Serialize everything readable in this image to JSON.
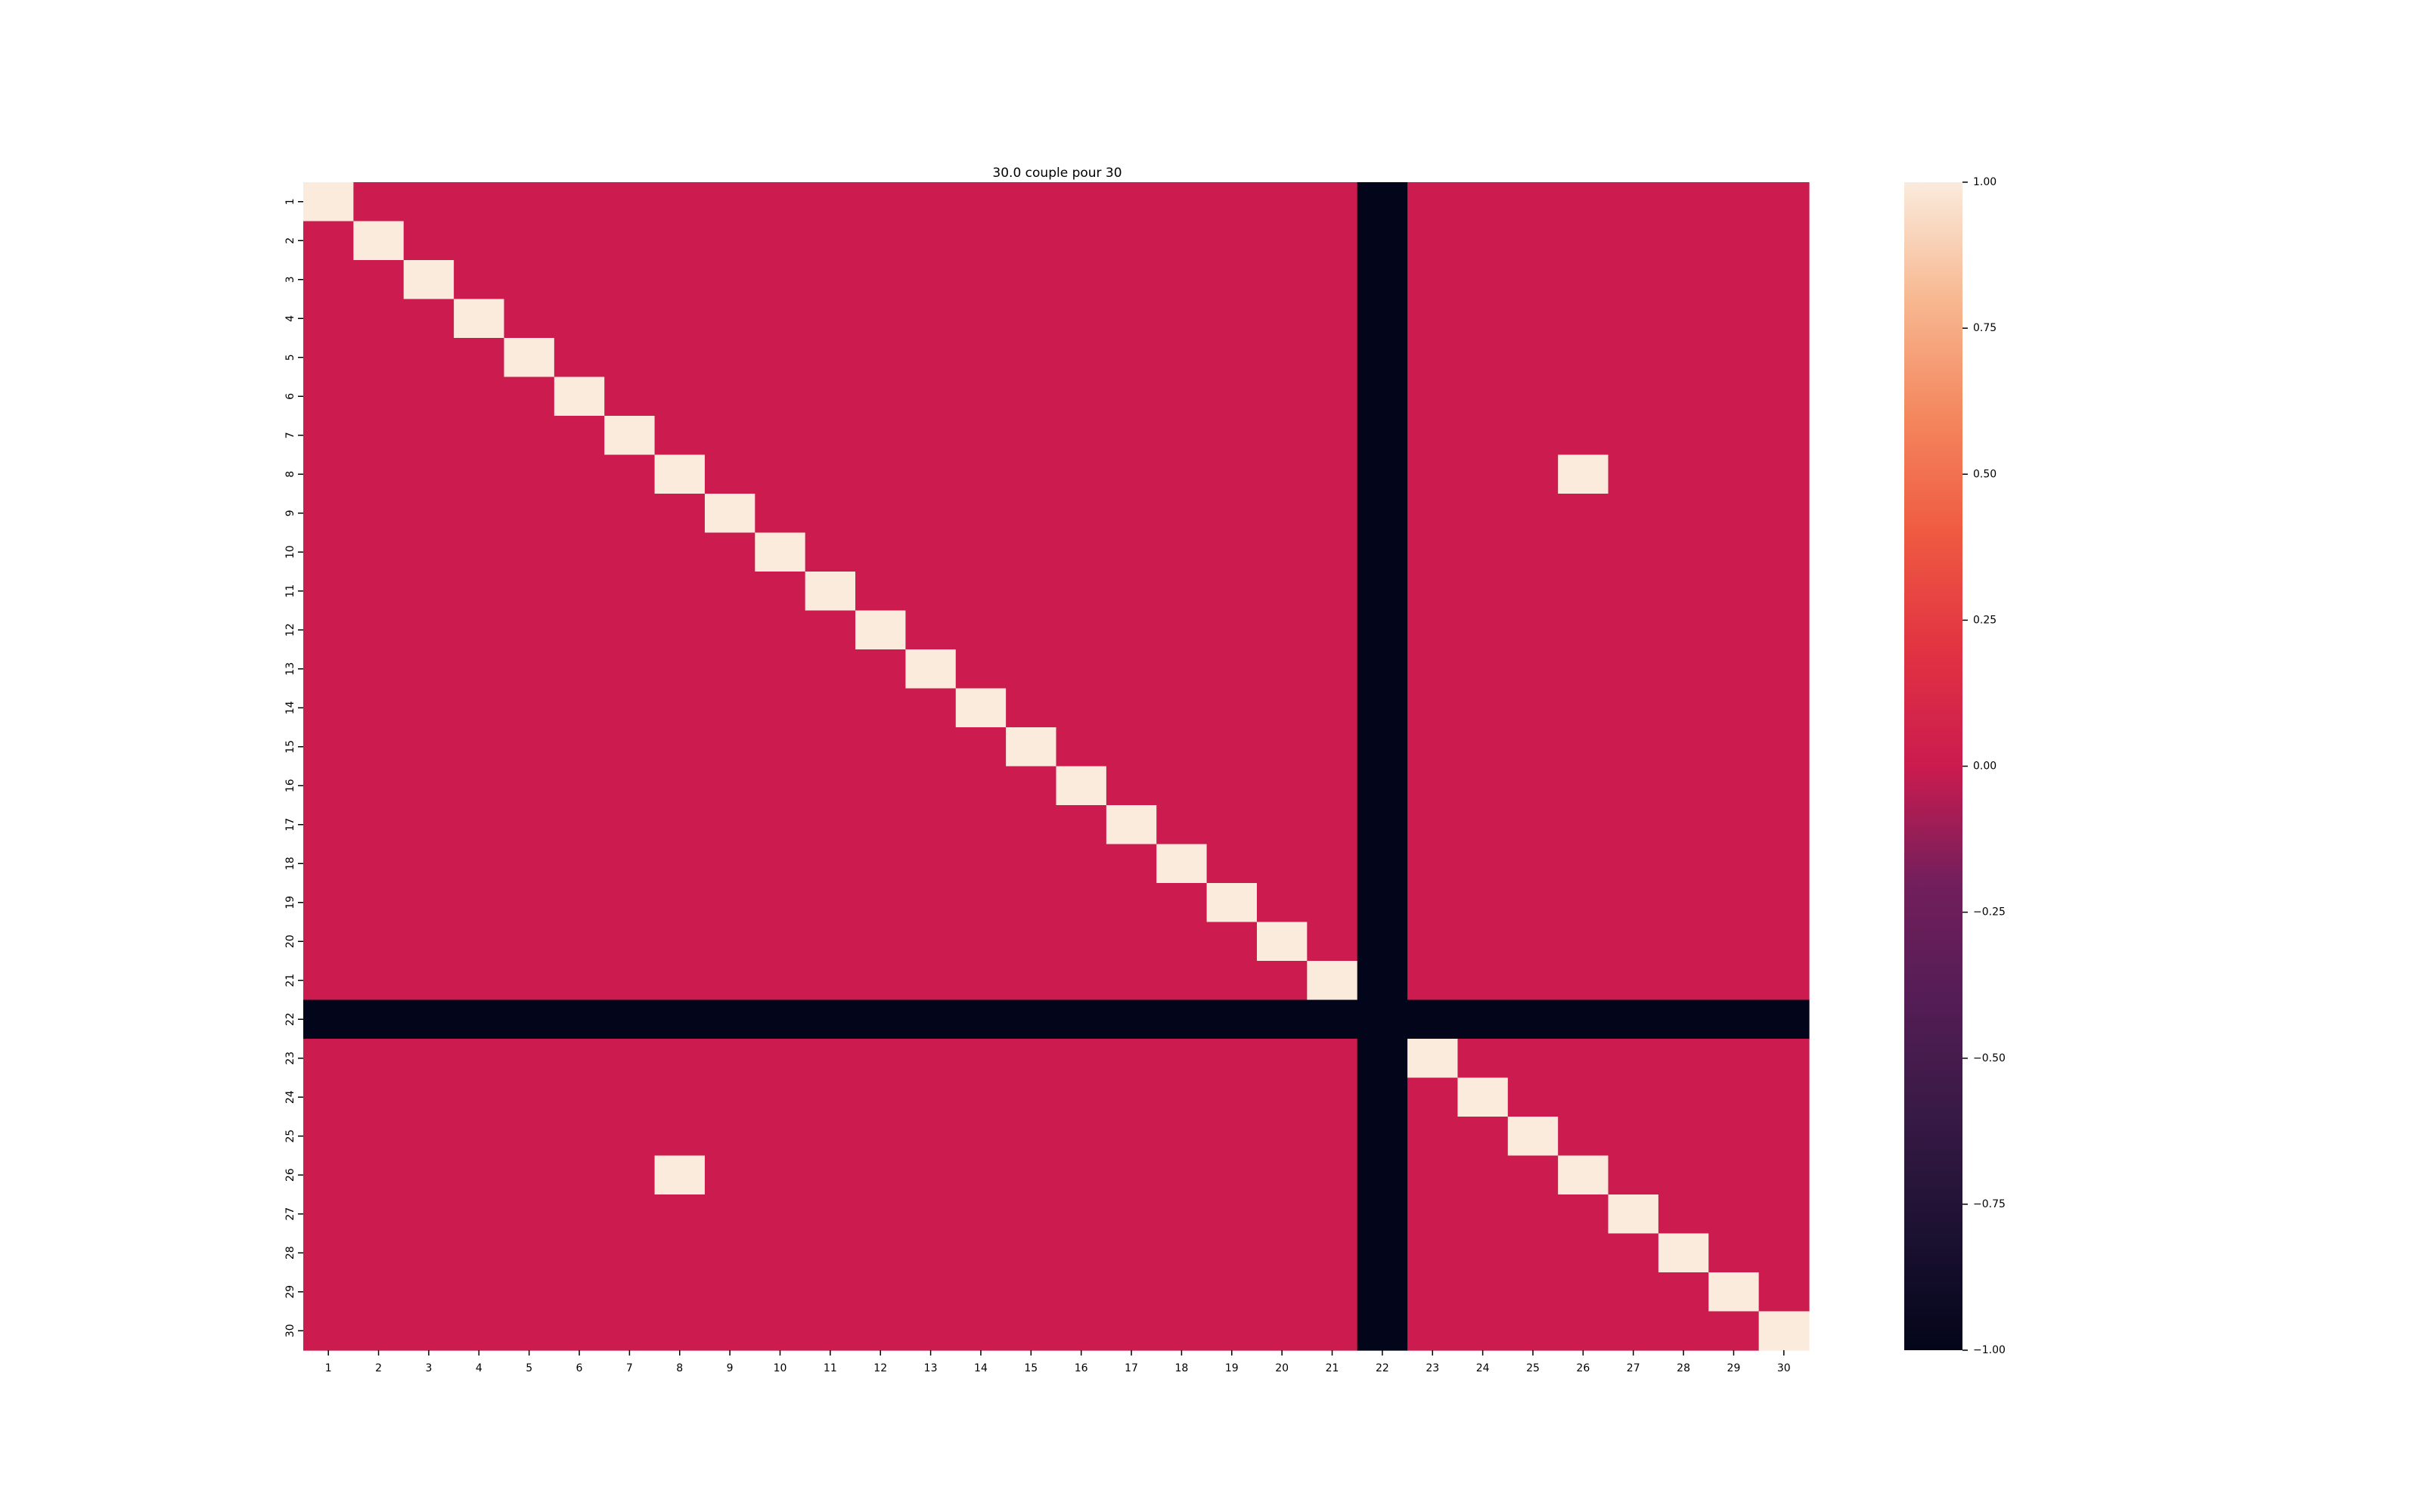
{
  "chart_data": {
    "type": "heatmap",
    "title": "30.0 couple pour 30",
    "xlabel": "",
    "ylabel": "",
    "x_labels": [
      "1",
      "2",
      "3",
      "4",
      "5",
      "6",
      "7",
      "8",
      "9",
      "10",
      "11",
      "12",
      "13",
      "14",
      "15",
      "16",
      "17",
      "18",
      "19",
      "20",
      "21",
      "22",
      "23",
      "24",
      "25",
      "26",
      "27",
      "28",
      "29",
      "30"
    ],
    "y_labels": [
      "1",
      "2",
      "3",
      "4",
      "5",
      "6",
      "7",
      "8",
      "9",
      "10",
      "11",
      "12",
      "13",
      "14",
      "15",
      "16",
      "17",
      "18",
      "19",
      "20",
      "21",
      "22",
      "23",
      "24",
      "25",
      "26",
      "27",
      "28",
      "29",
      "30"
    ],
    "matrix": [
      [
        1,
        0,
        0,
        0,
        0,
        0,
        0,
        0,
        0,
        0,
        0,
        0,
        0,
        0,
        0,
        0,
        0,
        0,
        0,
        0,
        0,
        -1,
        0,
        0,
        0,
        0,
        0,
        0,
        0,
        0
      ],
      [
        0,
        1,
        0,
        0,
        0,
        0,
        0,
        0,
        0,
        0,
        0,
        0,
        0,
        0,
        0,
        0,
        0,
        0,
        0,
        0,
        0,
        -1,
        0,
        0,
        0,
        0,
        0,
        0,
        0,
        0
      ],
      [
        0,
        0,
        1,
        0,
        0,
        0,
        0,
        0,
        0,
        0,
        0,
        0,
        0,
        0,
        0,
        0,
        0,
        0,
        0,
        0,
        0,
        -1,
        0,
        0,
        0,
        0,
        0,
        0,
        0,
        0
      ],
      [
        0,
        0,
        0,
        1,
        0,
        0,
        0,
        0,
        0,
        0,
        0,
        0,
        0,
        0,
        0,
        0,
        0,
        0,
        0,
        0,
        0,
        -1,
        0,
        0,
        0,
        0,
        0,
        0,
        0,
        0
      ],
      [
        0,
        0,
        0,
        0,
        1,
        0,
        0,
        0,
        0,
        0,
        0,
        0,
        0,
        0,
        0,
        0,
        0,
        0,
        0,
        0,
        0,
        -1,
        0,
        0,
        0,
        0,
        0,
        0,
        0,
        0
      ],
      [
        0,
        0,
        0,
        0,
        0,
        1,
        0,
        0,
        0,
        0,
        0,
        0,
        0,
        0,
        0,
        0,
        0,
        0,
        0,
        0,
        0,
        -1,
        0,
        0,
        0,
        0,
        0,
        0,
        0,
        0
      ],
      [
        0,
        0,
        0,
        0,
        0,
        0,
        1,
        0,
        0,
        0,
        0,
        0,
        0,
        0,
        0,
        0,
        0,
        0,
        0,
        0,
        0,
        -1,
        0,
        0,
        0,
        0,
        0,
        0,
        0,
        0
      ],
      [
        0,
        0,
        0,
        0,
        0,
        0,
        0,
        1,
        0,
        0,
        0,
        0,
        0,
        0,
        0,
        0,
        0,
        0,
        0,
        0,
        0,
        -1,
        0,
        0,
        0,
        1,
        0,
        0,
        0,
        0
      ],
      [
        0,
        0,
        0,
        0,
        0,
        0,
        0,
        0,
        1,
        0,
        0,
        0,
        0,
        0,
        0,
        0,
        0,
        0,
        0,
        0,
        0,
        -1,
        0,
        0,
        0,
        0,
        0,
        0,
        0,
        0
      ],
      [
        0,
        0,
        0,
        0,
        0,
        0,
        0,
        0,
        0,
        1,
        0,
        0,
        0,
        0,
        0,
        0,
        0,
        0,
        0,
        0,
        0,
        -1,
        0,
        0,
        0,
        0,
        0,
        0,
        0,
        0
      ],
      [
        0,
        0,
        0,
        0,
        0,
        0,
        0,
        0,
        0,
        0,
        1,
        0,
        0,
        0,
        0,
        0,
        0,
        0,
        0,
        0,
        0,
        -1,
        0,
        0,
        0,
        0,
        0,
        0,
        0,
        0
      ],
      [
        0,
        0,
        0,
        0,
        0,
        0,
        0,
        0,
        0,
        0,
        0,
        1,
        0,
        0,
        0,
        0,
        0,
        0,
        0,
        0,
        0,
        -1,
        0,
        0,
        0,
        0,
        0,
        0,
        0,
        0
      ],
      [
        0,
        0,
        0,
        0,
        0,
        0,
        0,
        0,
        0,
        0,
        0,
        0,
        1,
        0,
        0,
        0,
        0,
        0,
        0,
        0,
        0,
        -1,
        0,
        0,
        0,
        0,
        0,
        0,
        0,
        0
      ],
      [
        0,
        0,
        0,
        0,
        0,
        0,
        0,
        0,
        0,
        0,
        0,
        0,
        0,
        1,
        0,
        0,
        0,
        0,
        0,
        0,
        0,
        -1,
        0,
        0,
        0,
        0,
        0,
        0,
        0,
        0
      ],
      [
        0,
        0,
        0,
        0,
        0,
        0,
        0,
        0,
        0,
        0,
        0,
        0,
        0,
        0,
        1,
        0,
        0,
        0,
        0,
        0,
        0,
        -1,
        0,
        0,
        0,
        0,
        0,
        0,
        0,
        0
      ],
      [
        0,
        0,
        0,
        0,
        0,
        0,
        0,
        0,
        0,
        0,
        0,
        0,
        0,
        0,
        0,
        1,
        0,
        0,
        0,
        0,
        0,
        -1,
        0,
        0,
        0,
        0,
        0,
        0,
        0,
        0
      ],
      [
        0,
        0,
        0,
        0,
        0,
        0,
        0,
        0,
        0,
        0,
        0,
        0,
        0,
        0,
        0,
        0,
        1,
        0,
        0,
        0,
        0,
        -1,
        0,
        0,
        0,
        0,
        0,
        0,
        0,
        0
      ],
      [
        0,
        0,
        0,
        0,
        0,
        0,
        0,
        0,
        0,
        0,
        0,
        0,
        0,
        0,
        0,
        0,
        0,
        1,
        0,
        0,
        0,
        -1,
        0,
        0,
        0,
        0,
        0,
        0,
        0,
        0
      ],
      [
        0,
        0,
        0,
        0,
        0,
        0,
        0,
        0,
        0,
        0,
        0,
        0,
        0,
        0,
        0,
        0,
        0,
        0,
        1,
        0,
        0,
        -1,
        0,
        0,
        0,
        0,
        0,
        0,
        0,
        0
      ],
      [
        0,
        0,
        0,
        0,
        0,
        0,
        0,
        0,
        0,
        0,
        0,
        0,
        0,
        0,
        0,
        0,
        0,
        0,
        0,
        1,
        0,
        -1,
        0,
        0,
        0,
        0,
        0,
        0,
        0,
        0
      ],
      [
        0,
        0,
        0,
        0,
        0,
        0,
        0,
        0,
        0,
        0,
        0,
        0,
        0,
        0,
        0,
        0,
        0,
        0,
        0,
        0,
        1,
        -1,
        0,
        0,
        0,
        0,
        0,
        0,
        0,
        0
      ],
      [
        -1,
        -1,
        -1,
        -1,
        -1,
        -1,
        -1,
        -1,
        -1,
        -1,
        -1,
        -1,
        -1,
        -1,
        -1,
        -1,
        -1,
        -1,
        -1,
        -1,
        -1,
        -1,
        -1,
        -1,
        -1,
        -1,
        -1,
        -1,
        -1,
        -1
      ],
      [
        0,
        0,
        0,
        0,
        0,
        0,
        0,
        0,
        0,
        0,
        0,
        0,
        0,
        0,
        0,
        0,
        0,
        0,
        0,
        0,
        0,
        -1,
        1,
        0,
        0,
        0,
        0,
        0,
        0,
        0
      ],
      [
        0,
        0,
        0,
        0,
        0,
        0,
        0,
        0,
        0,
        0,
        0,
        0,
        0,
        0,
        0,
        0,
        0,
        0,
        0,
        0,
        0,
        -1,
        0,
        1,
        0,
        0,
        0,
        0,
        0,
        0
      ],
      [
        0,
        0,
        0,
        0,
        0,
        0,
        0,
        0,
        0,
        0,
        0,
        0,
        0,
        0,
        0,
        0,
        0,
        0,
        0,
        0,
        0,
        -1,
        0,
        0,
        1,
        0,
        0,
        0,
        0,
        0
      ],
      [
        0,
        0,
        0,
        0,
        0,
        0,
        0,
        1,
        0,
        0,
        0,
        0,
        0,
        0,
        0,
        0,
        0,
        0,
        0,
        0,
        0,
        -1,
        0,
        0,
        0,
        1,
        0,
        0,
        0,
        0
      ],
      [
        0,
        0,
        0,
        0,
        0,
        0,
        0,
        0,
        0,
        0,
        0,
        0,
        0,
        0,
        0,
        0,
        0,
        0,
        0,
        0,
        0,
        -1,
        0,
        0,
        0,
        0,
        1,
        0,
        0,
        0
      ],
      [
        0,
        0,
        0,
        0,
        0,
        0,
        0,
        0,
        0,
        0,
        0,
        0,
        0,
        0,
        0,
        0,
        0,
        0,
        0,
        0,
        0,
        -1,
        0,
        0,
        0,
        0,
        0,
        1,
        0,
        0
      ],
      [
        0,
        0,
        0,
        0,
        0,
        0,
        0,
        0,
        0,
        0,
        0,
        0,
        0,
        0,
        0,
        0,
        0,
        0,
        0,
        0,
        0,
        -1,
        0,
        0,
        0,
        0,
        0,
        0,
        1,
        0
      ],
      [
        0,
        0,
        0,
        0,
        0,
        0,
        0,
        0,
        0,
        0,
        0,
        0,
        0,
        0,
        0,
        0,
        0,
        0,
        0,
        0,
        0,
        -1,
        0,
        0,
        0,
        0,
        0,
        0,
        0,
        1
      ]
    ],
    "vmin": -1,
    "vmax": 1,
    "colormap": "rocket",
    "colorbar": {
      "ticks": [
        -1.0,
        -0.75,
        -0.5,
        -0.25,
        0.0,
        0.25,
        0.5,
        0.75,
        1.0
      ],
      "tick_labels": [
        "−1.00",
        "−0.75",
        "−0.50",
        "−0.25",
        "0.00",
        "0.25",
        "0.50",
        "0.75",
        "1.00"
      ]
    },
    "colors": {
      "value_pos1": "#faebdd",
      "value_zero": "#cb1b4f",
      "value_neg1": "#03051a"
    },
    "grid": false,
    "legend": "colorbar-right"
  }
}
